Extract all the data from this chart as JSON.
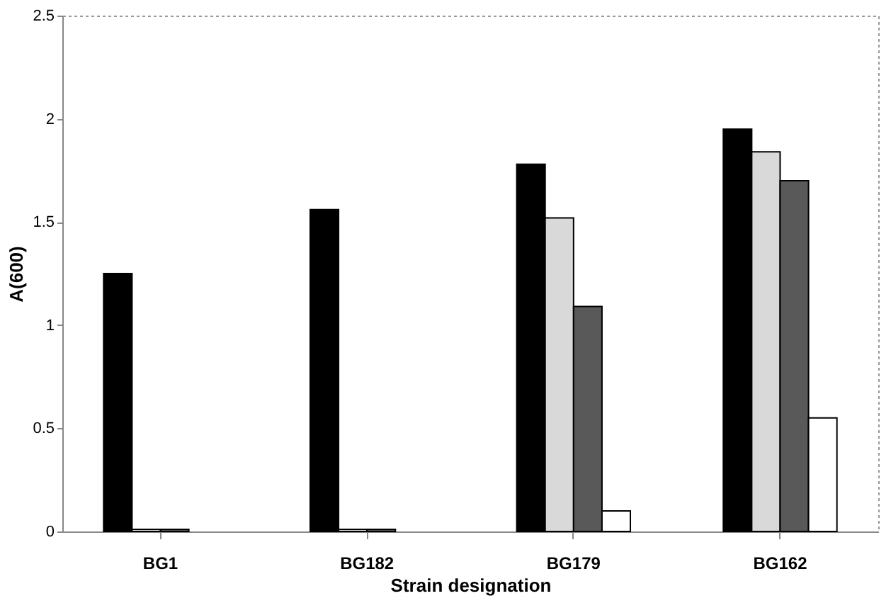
{
  "chart_data": {
    "type": "bar",
    "xlabel": "Strain designation",
    "ylabel": "A(600)",
    "categories": [
      "BG1",
      "BG182",
      "BG179",
      "BG162"
    ],
    "series": [
      {
        "color": "#000000",
        "values": [
          1.25,
          1.56,
          1.78,
          1.95
        ]
      },
      {
        "color": "#d9d9d9",
        "values": [
          0.01,
          0.01,
          1.52,
          1.84
        ]
      },
      {
        "color": "#595959",
        "values": [
          0.01,
          0.01,
          1.09,
          1.7
        ]
      },
      {
        "color": "#ffffff",
        "values": [
          null,
          null,
          0.1,
          0.55
        ]
      }
    ],
    "ylim": [
      0,
      2.5
    ],
    "yticks": [
      0,
      0.5,
      1,
      1.5,
      2,
      2.5
    ],
    "grid": false
  }
}
